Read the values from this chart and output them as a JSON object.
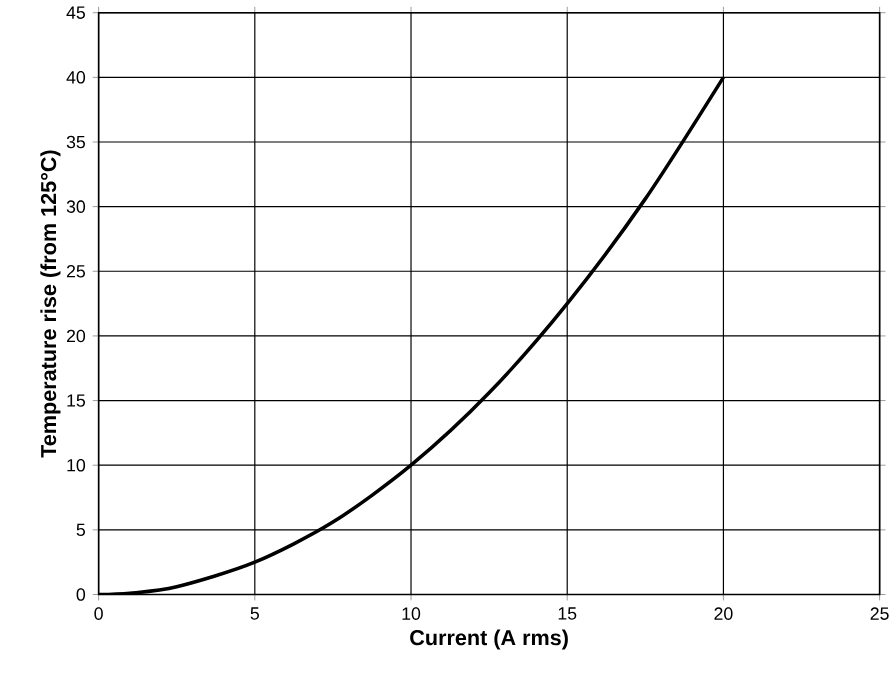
{
  "chart_data": {
    "type": "line",
    "xlabel": "Current (A rms)",
    "ylabel": "Temperature rise (from 125°C)",
    "x": [
      0,
      1,
      2.5,
      5,
      7.5,
      10,
      12.5,
      15,
      17.5,
      20
    ],
    "values": [
      0,
      0.1,
      0.6,
      2.5,
      5.6,
      10,
      15.6,
      22.5,
      30.6,
      40
    ],
    "color": "#000000",
    "xlim": [
      0,
      25
    ],
    "ylim": [
      0,
      45
    ],
    "xticks": [
      0,
      5,
      10,
      15,
      20,
      25
    ],
    "yticks": [
      0,
      5,
      10,
      15,
      20,
      25,
      30,
      35,
      40,
      45
    ],
    "grid": true
  }
}
